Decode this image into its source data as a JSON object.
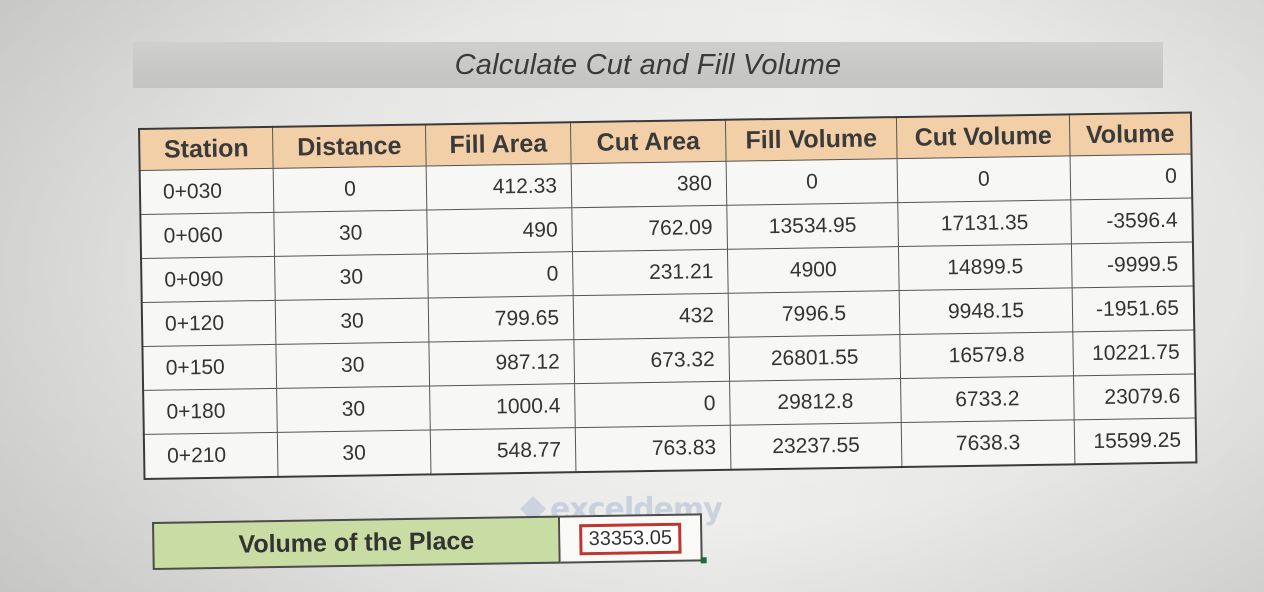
{
  "title": "Calculate Cut and Fill Volume",
  "table": {
    "headers": [
      "Station",
      "Distance",
      "Fill Area",
      "Cut Area",
      "Fill Volume",
      "Cut Volume",
      "Volume"
    ],
    "rows": [
      [
        "0+030",
        "0",
        "412.33",
        "380",
        "0",
        "0",
        "0"
      ],
      [
        "0+060",
        "30",
        "490",
        "762.09",
        "13534.95",
        "17131.35",
        "-3596.4"
      ],
      [
        "0+090",
        "30",
        "0",
        "231.21",
        "4900",
        "14899.5",
        "-9999.5"
      ],
      [
        "0+120",
        "30",
        "799.65",
        "432",
        "7996.5",
        "9948.15",
        "-1951.65"
      ],
      [
        "0+150",
        "30",
        "987.12",
        "673.32",
        "26801.55",
        "16579.8",
        "10221.75"
      ],
      [
        "0+180",
        "30",
        "1000.4",
        "0",
        "29812.8",
        "6733.2",
        "23079.6"
      ],
      [
        "0+210",
        "30",
        "548.77",
        "763.83",
        "23237.55",
        "7638.3",
        "15599.25"
      ]
    ]
  },
  "summary": {
    "label": "Volume of the Place",
    "value": "33353.05"
  },
  "watermark": {
    "text": "exceldemy",
    "icon": "exceldemy-logo-icon"
  },
  "colors": {
    "header_fill": "#f2cfa6",
    "title_fill": "#c8c8c6",
    "summary_label_fill": "#c9dca4",
    "highlight_border": "#c0352e"
  }
}
